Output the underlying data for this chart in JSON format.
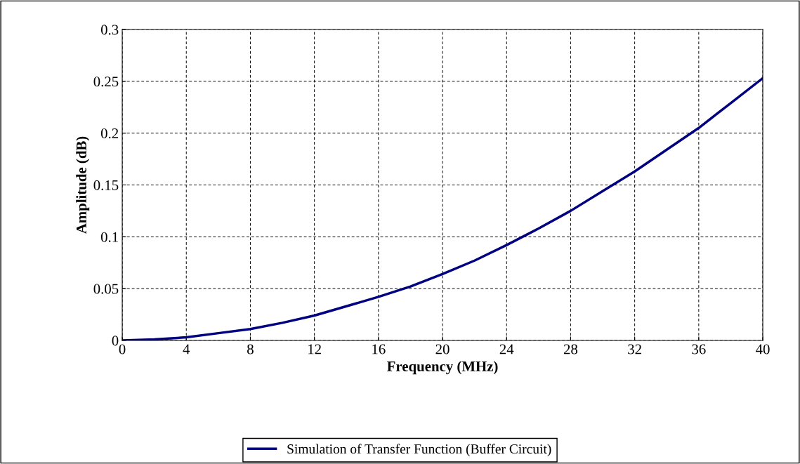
{
  "chart_data": {
    "type": "line",
    "xlabel": "Frequency (MHz)",
    "ylabel": "Amplitude (dB)",
    "x": [
      0,
      2,
      4,
      6,
      8,
      10,
      12,
      14,
      16,
      18,
      20,
      22,
      24,
      26,
      28,
      30,
      32,
      34,
      36,
      38,
      40
    ],
    "series": [
      {
        "name": "Simulation of Transfer Function (Buffer Circuit)",
        "color": "#000080",
        "values": [
          0,
          0.001,
          0.003,
          0.007,
          0.011,
          0.017,
          0.024,
          0.033,
          0.042,
          0.052,
          0.064,
          0.077,
          0.092,
          0.108,
          0.125,
          0.144,
          0.163,
          0.184,
          0.205,
          0.229,
          0.253
        ]
      }
    ],
    "xlim": [
      0,
      40
    ],
    "xticks": [
      0,
      4,
      8,
      12,
      16,
      20,
      24,
      28,
      32,
      36,
      40
    ],
    "ylim": [
      0,
      0.3
    ],
    "yticks": [
      0,
      0.05,
      0.1,
      0.15,
      0.2,
      0.25,
      0.3
    ],
    "grid": true,
    "legend": "bottom",
    "line_style": "solid",
    "marker": "none"
  }
}
